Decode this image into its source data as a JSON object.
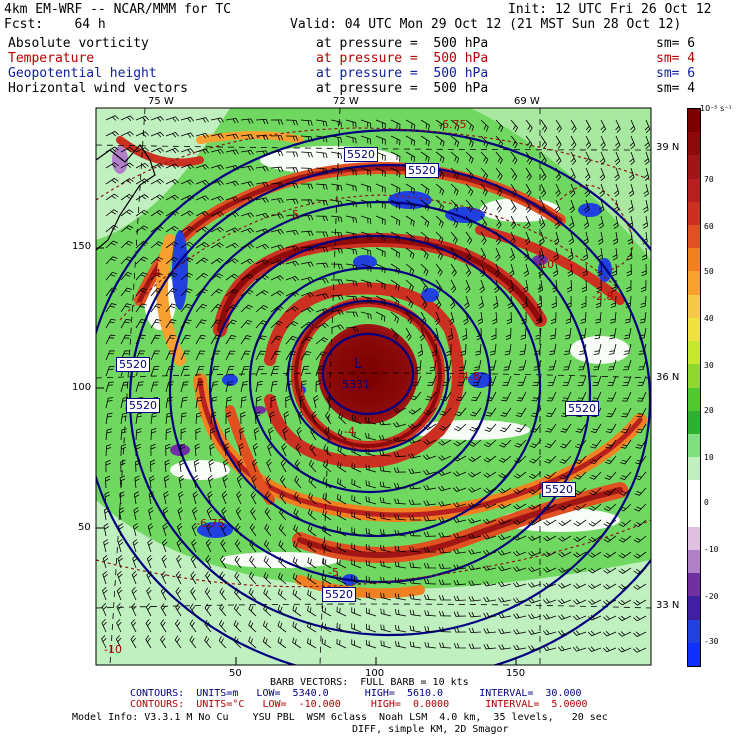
{
  "header": {
    "model": "4km EM-WRF -- NCAR/MMM for TC",
    "init": "Init: 12 UTC Fri 26 Oct 12",
    "fcst": "Fcst:    64 h",
    "valid": "Valid: 04 UTC Mon 29 Oct 12 (21 MST Sun 28 Oct 12)"
  },
  "fields": [
    {
      "name": "Absolute vorticity",
      "level": "at pressure =  500 hPa",
      "sm": "sm= 6",
      "color": "#000000"
    },
    {
      "name": "Temperature",
      "level": "at pressure =  500 hPa",
      "sm": "sm= 4",
      "color": "#b00000"
    },
    {
      "name": "Geopotential height",
      "level": "at pressure =  500 hPa",
      "sm": "sm= 6",
      "color": "#1020a0"
    },
    {
      "name": "Horizontal wind vectors",
      "level": "at pressure =  500 hPa",
      "sm": "sm= 4",
      "color": "#000000"
    }
  ],
  "axes": {
    "lon_top": [
      "75 W",
      "72 W",
      "69 W"
    ],
    "lat_right": [
      "39 N",
      "36 N",
      "33 N"
    ],
    "grid_left": [
      "150",
      "100",
      "50"
    ],
    "grid_bottom": [
      "50",
      "100",
      "150"
    ]
  },
  "colorbar": {
    "unit": "10⁻⁵ s⁻¹",
    "labels": [
      "70",
      "60",
      "50",
      "40",
      "30",
      "20",
      "10",
      "0",
      "-10",
      "-20",
      "-30"
    ],
    "colors": [
      "#7a0000",
      "#8c0a0a",
      "#a01515",
      "#b82020",
      "#cc3020",
      "#e05020",
      "#f08020",
      "#f8a030",
      "#f8c848",
      "#f0e040",
      "#c8e830",
      "#90d830",
      "#50c830",
      "#30b030",
      "#80e080",
      "#c0f0c0",
      "#ffffff",
      "#ffffff",
      "#e0c0e0",
      "#b080c8",
      "#7030a0",
      "#4020a0",
      "#2040e0",
      "#1030ff"
    ]
  },
  "map_labels": {
    "height_5520": "5520",
    "height_5331": "5331",
    "low_marker": "L",
    "temp_labels": [
      "-6.75",
      "-5",
      "-4",
      "-10",
      "-2.8",
      "-4.8",
      "-4",
      "-6.75",
      "-5",
      "-10"
    ]
  },
  "footer": {
    "barb": "BARB VECTORS:  FULL BARB = 10 kts",
    "contours1": "CONTOURS:  UNITS=m   LOW=  5340.0      HIGH=  5610.0      INTERVAL=  30.000",
    "contours2": "CONTOURS:  UNITS=°C   LOW=  -10.000     HIGH=  0.0000      INTERVAL=  5.0000",
    "model_info": "Model Info: V3.3.1 M No Cu    YSU PBL  WSM 6class  Noah LSM  4.0 km,  35 levels,   20 sec",
    "model_info2": "DIFF, simple KM, 2D Smagor"
  }
}
